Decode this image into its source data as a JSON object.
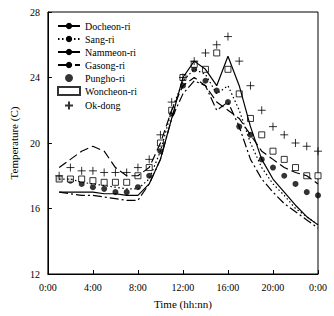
{
  "chart_data": {
    "type": "line",
    "x_label": "Time (hh:nn)",
    "y_label": "Temperature (C)",
    "x": [
      1,
      2,
      3,
      4,
      5,
      6,
      7,
      8,
      9,
      10,
      11,
      12,
      13,
      14,
      15,
      16,
      17,
      18,
      19,
      20,
      21,
      22,
      23,
      24
    ],
    "xlim": [
      0,
      24
    ],
    "xticks": [
      {
        "value": 0,
        "label": "0:00"
      },
      {
        "value": 4,
        "label": "4:00"
      },
      {
        "value": 8,
        "label": "8:00"
      },
      {
        "value": 12,
        "label": "12:00"
      },
      {
        "value": 16,
        "label": "16:00"
      },
      {
        "value": 20,
        "label": "20:00"
      },
      {
        "value": 24,
        "label": "0:00"
      }
    ],
    "ylim": [
      12,
      28
    ],
    "yticks": [
      12,
      16,
      20,
      24,
      28
    ],
    "grid": false,
    "legend": "upper left",
    "series": [
      {
        "name": "Docheon-ri",
        "type": "line",
        "line_style": "solid",
        "color": "#000000",
        "values": [
          17.0,
          17.0,
          17.0,
          17.0,
          16.9,
          16.9,
          16.8,
          16.8,
          17.5,
          19.0,
          21.5,
          24.0,
          25.0,
          24.5,
          23.5,
          25.3,
          23.5,
          21.0,
          19.0,
          17.8,
          17.0,
          16.2,
          15.5,
          15.0
        ]
      },
      {
        "name": "Sang-ri",
        "type": "line",
        "line_style": "dotted",
        "color": "#000000",
        "values": [
          17.8,
          17.8,
          17.6,
          17.5,
          17.4,
          17.3,
          17.2,
          17.2,
          17.8,
          19.5,
          22.0,
          23.8,
          24.5,
          24.2,
          23.0,
          23.5,
          22.0,
          20.0,
          18.5,
          17.5,
          16.8,
          16.0,
          15.5,
          15.0
        ]
      },
      {
        "name": "Nammeon-ri",
        "type": "line",
        "line_style": "dashed",
        "color": "#000000",
        "values": [
          18.5,
          19.0,
          19.5,
          19.8,
          19.5,
          18.5,
          18.0,
          18.0,
          18.5,
          20.0,
          22.0,
          23.5,
          24.0,
          23.5,
          22.5,
          22.0,
          21.5,
          20.5,
          19.5,
          19.0,
          18.5,
          18.2,
          18.0,
          17.5
        ]
      },
      {
        "name": "Gasong-ri",
        "type": "line",
        "line_style": "dashdot",
        "color": "#000000",
        "values": [
          17.0,
          16.9,
          16.8,
          16.8,
          16.7,
          16.6,
          16.5,
          16.5,
          17.5,
          19.0,
          21.5,
          23.0,
          23.8,
          23.5,
          22.0,
          22.5,
          21.0,
          19.0,
          17.8,
          17.0,
          16.3,
          15.8,
          15.3,
          14.8
        ]
      },
      {
        "name": "Pungho-ri",
        "type": "scatter",
        "marker": "circle",
        "color": "#000000",
        "values": [
          17.8,
          17.7,
          17.5,
          17.3,
          17.2,
          17.0,
          17.0,
          17.3,
          18.0,
          19.5,
          21.8,
          23.5,
          24.5,
          23.8,
          23.2,
          22.5,
          21.0,
          20.5,
          19.0,
          18.5,
          18.0,
          17.5,
          17.0,
          16.8
        ]
      },
      {
        "name": "Woncheon-ri",
        "type": "scatter",
        "marker": "square_open",
        "color": "#000000",
        "values": [
          17.8,
          17.8,
          17.8,
          17.7,
          17.6,
          17.6,
          17.6,
          18.0,
          18.5,
          20.0,
          22.0,
          24.0,
          24.8,
          24.5,
          25.5,
          24.5,
          23.0,
          21.5,
          20.5,
          19.5,
          19.0,
          18.5,
          18.0,
          18.0
        ]
      },
      {
        "name": "Ok-dong",
        "type": "scatter",
        "marker": "plus",
        "color": "#000000",
        "values": [
          18.0,
          18.5,
          18.3,
          18.3,
          18.2,
          18.2,
          18.2,
          18.5,
          19.0,
          20.5,
          22.5,
          24.0,
          25.0,
          25.5,
          26.0,
          26.5,
          25.0,
          23.5,
          22.0,
          21.0,
          20.5,
          20.0,
          19.8,
          19.5
        ]
      }
    ]
  }
}
